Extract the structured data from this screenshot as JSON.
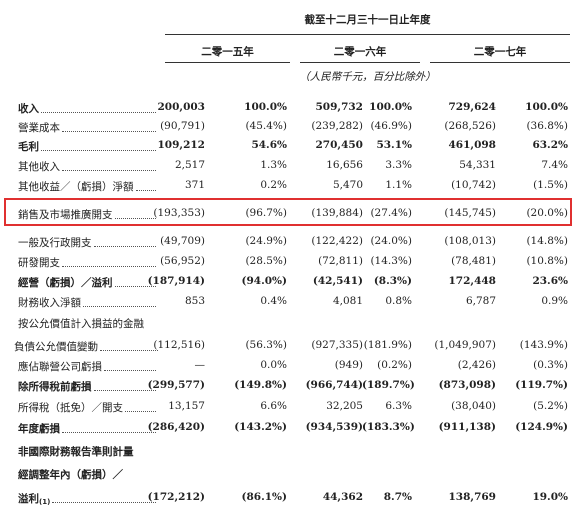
{
  "header": {
    "period": "截至十二月三十一日止年度",
    "years": [
      "二零一五年",
      "二零一六年",
      "二零一七年"
    ],
    "unit": "（人民幣千元，百分比除外）"
  },
  "rows": [
    {
      "label": "收入",
      "bold": true,
      "values": [
        "200,003",
        "100.0%",
        "509,732",
        "100.0%",
        "729,624",
        "100.0%"
      ]
    },
    {
      "label": "營業成本",
      "values": [
        "(90,791)",
        "(45.4%)",
        "(239,282)",
        "(46.9%)",
        "(268,526)",
        "(36.8%)"
      ]
    },
    {
      "label": "毛利",
      "bold": true,
      "values": [
        "109,212",
        "54.6%",
        "270,450",
        "53.1%",
        "461,098",
        "63.2%"
      ]
    },
    {
      "label": "其他收入",
      "values": [
        "2,517",
        "1.3%",
        "16,656",
        "3.3%",
        "54,331",
        "7.4%"
      ]
    },
    {
      "label": "其他收益／（虧損）淨額",
      "values": [
        "371",
        "0.2%",
        "5,470",
        "1.1%",
        "(10,742)",
        "(1.5%)"
      ]
    },
    {
      "label": "銷售及市場推廣開支",
      "highlighted": true,
      "values": [
        "(193,353)",
        "(96.7%)",
        "(139,884)",
        "(27.4%)",
        "(145,745)",
        "(20.0%)"
      ]
    },
    {
      "label": "一般及行政開支",
      "values": [
        "(49,709)",
        "(24.9%)",
        "(122,422)",
        "(24.0%)",
        "(108,013)",
        "(14.8%)"
      ]
    },
    {
      "label": "研發開支",
      "values": [
        "(56,952)",
        "(28.5%)",
        "(72,811)",
        "(14.3%)",
        "(78,481)",
        "(10.8%)"
      ]
    },
    {
      "label": "經營（虧損）／溢利",
      "bold": true,
      "values": [
        "(187,914)",
        "(94.0%)",
        "(42,541)",
        "(8.3%)",
        "172,448",
        "23.6%"
      ]
    },
    {
      "label": "財務收入淨額",
      "values": [
        "853",
        "0.4%",
        "4,081",
        "0.8%",
        "6,787",
        "0.9%"
      ]
    },
    {
      "label": "按公允價值計入損益的金融"
    },
    {
      "label": "負債公允價值變動",
      "indent": true,
      "values": [
        "(112,516)",
        "(56.3%)",
        "(927,335)",
        "(181.9%)",
        "(1,049,907)",
        "(143.9%)"
      ]
    },
    {
      "label": "應佔聯營公司虧損",
      "values": [
        "—",
        "0.0%",
        "(949)",
        "(0.2%)",
        "(2,426)",
        "(0.3%)"
      ]
    },
    {
      "label": "除所得稅前虧損",
      "bold": true,
      "values": [
        "(299,577)",
        "(149.8%)",
        "(966,744)",
        "(189.7%)",
        "(873,098)",
        "(119.7%)"
      ]
    },
    {
      "label": "所得稅（抵免）／開支",
      "values": [
        "13,157",
        "6.6%",
        "32,205",
        "6.3%",
        "(38,040)",
        "(5.2%)"
      ]
    },
    {
      "label": "年度虧損",
      "bold": true,
      "values": [
        "(286,420)",
        "(143.2%)",
        "(934,539)",
        "(183.3%)",
        "(911,138)",
        "(124.9%)"
      ]
    },
    {
      "label": "非國際財務報告準則計量",
      "bold": true
    },
    {
      "label": "經調整年內（虧損）／",
      "bold": true
    },
    {
      "label": "溢利",
      "note": "(1)",
      "bold": true,
      "values": [
        "(172,212)",
        "(86.1%)",
        "44,362",
        "8.7%",
        "138,769",
        "19.0%"
      ]
    }
  ]
}
